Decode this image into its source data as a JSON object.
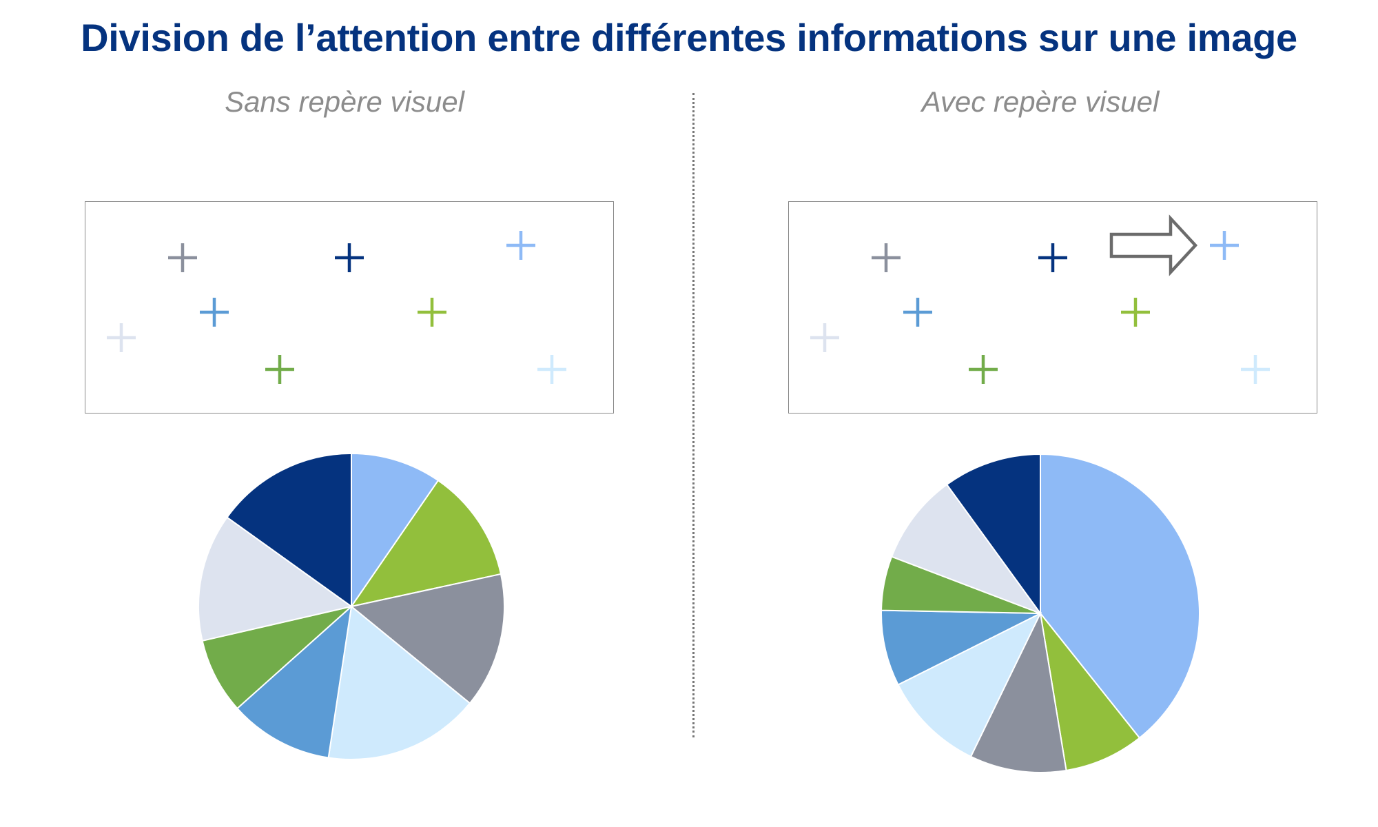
{
  "title": "Division de l’attention entre différentes informations sur une image",
  "panels": {
    "left": {
      "subtitle": "Sans repère visuel"
    },
    "right": {
      "subtitle": "Avec repère visuel"
    }
  },
  "colors": {
    "title": "#05337f",
    "subtitle": "#8c8c8c",
    "grey": "#8b909d",
    "navy": "#05337f",
    "sky": "#8ebaf6",
    "mid_blue": "#5b9bd5",
    "lime": "#92bf3c",
    "pale_lavender": "#dde3ef",
    "green": "#72ac4a",
    "pale_blue": "#cfeafd",
    "arrow": "#6b6b6b"
  },
  "stimulus_items": [
    {
      "icon": "plus-icon",
      "color": "grey"
    },
    {
      "icon": "plus-icon",
      "color": "navy"
    },
    {
      "icon": "plus-icon",
      "color": "sky"
    },
    {
      "icon": "plus-icon",
      "color": "mid_blue"
    },
    {
      "icon": "plus-icon",
      "color": "lime"
    },
    {
      "icon": "plus-icon",
      "color": "pale_lavender"
    },
    {
      "icon": "plus-icon",
      "color": "green"
    },
    {
      "icon": "plus-icon",
      "color": "pale_blue"
    }
  ],
  "cue": {
    "icon": "arrow-right-icon",
    "points_to": "sky"
  },
  "chart_data": [
    {
      "type": "pie",
      "title": "",
      "slices": [
        {
          "color": "sky",
          "value": 9.6
        },
        {
          "color": "lime",
          "value": 12.0
        },
        {
          "color": "grey",
          "value": 14.3
        },
        {
          "color": "pale_blue",
          "value": 16.5
        },
        {
          "color": "mid_blue",
          "value": 11.0
        },
        {
          "color": "green",
          "value": 8.0
        },
        {
          "color": "pale_lavender",
          "value": 13.5
        },
        {
          "color": "navy",
          "value": 15.1
        }
      ]
    },
    {
      "type": "pie",
      "title": "",
      "slices": [
        {
          "color": "sky",
          "value": 39.3
        },
        {
          "color": "lime",
          "value": 8.1
        },
        {
          "color": "grey",
          "value": 9.8
        },
        {
          "color": "pale_blue",
          "value": 10.4
        },
        {
          "color": "mid_blue",
          "value": 7.7
        },
        {
          "color": "green",
          "value": 5.5
        },
        {
          "color": "pale_lavender",
          "value": 9.2
        },
        {
          "color": "navy",
          "value": 10.0
        }
      ]
    }
  ]
}
